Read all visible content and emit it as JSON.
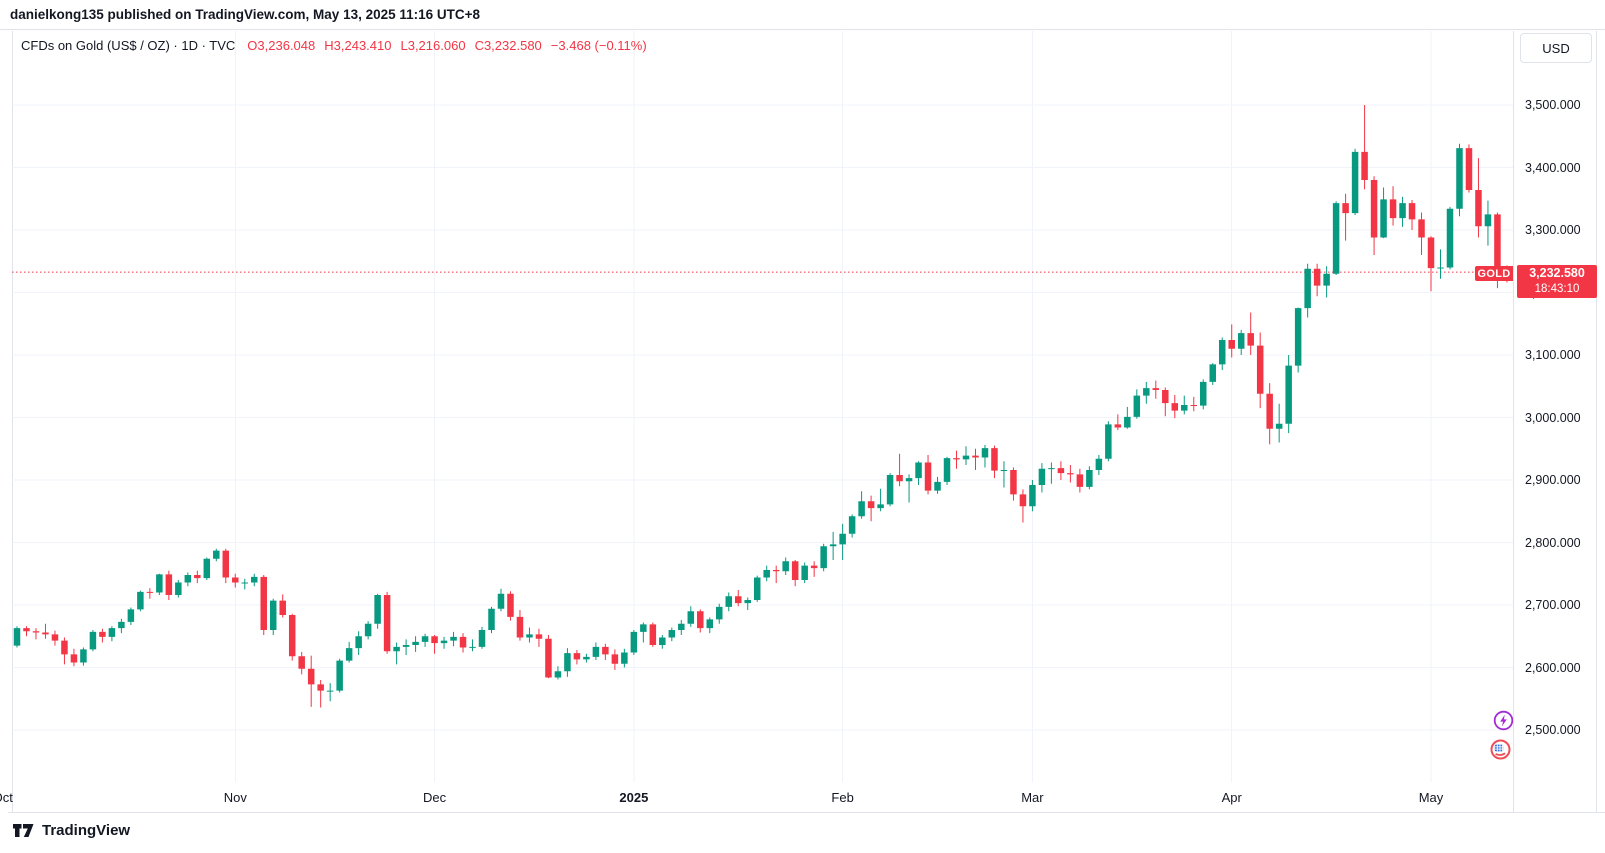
{
  "publish_bar": {
    "text": "danielkong135 published on TradingView.com, May 13, 2025 11:16 UTC+8"
  },
  "header": {
    "title": "CFDs on Gold (US$ / OZ) · 1D · TVC",
    "open": "O3,236.048",
    "high": "H3,243.410",
    "low": "L3,216.060",
    "close": "C3,232.580",
    "change": "−3.468 (−0.11%)"
  },
  "price_scale": {
    "currency_button": "USD",
    "symbol_label": "GOLD",
    "last_price": "3,232.580",
    "countdown": "18:43:10"
  },
  "footer": {
    "brand": "TradingView"
  },
  "icons": {
    "bottom_right": [
      "lightning-icon",
      "us-flag-icon"
    ]
  },
  "colors": {
    "up": "#089981",
    "down": "#f23645",
    "grid": "#f0f3fa",
    "border": "#e0e3eb",
    "text": "#131722",
    "accent_red": "#f23645"
  },
  "chart_data": {
    "type": "candlestick",
    "title": "CFDs on Gold (US$ / OZ) · 1D · TVC",
    "symbol": "GOLD",
    "exchange": "TVC",
    "timeframe": "1D",
    "currency": "USD",
    "current": {
      "open": 3236.048,
      "high": 3243.41,
      "low": 3216.06,
      "close": 3232.58,
      "change": -3.468,
      "change_pct": "−0.11%"
    },
    "last_price": 3232.58,
    "last_price_label": "3,232.580",
    "countdown": "18:43:10",
    "grid": true,
    "ylim": [
      2417,
      3618
    ],
    "y_ticks": [
      {
        "price": 3500,
        "label": "3,500.000"
      },
      {
        "price": 3400,
        "label": "3,400.000"
      },
      {
        "price": 3300,
        "label": "3,300.000"
      },
      {
        "price": 3200,
        "label": "3,200.000"
      },
      {
        "price": 3100,
        "label": "3,100.000"
      },
      {
        "price": 3000,
        "label": "3,000.000"
      },
      {
        "price": 2900,
        "label": "2,900.000"
      },
      {
        "price": 2800,
        "label": "2,800.000"
      },
      {
        "price": 2700,
        "label": "2,700.000"
      },
      {
        "price": 2600,
        "label": "2,600.000"
      },
      {
        "price": 2500,
        "label": "2,500.000"
      }
    ],
    "x_ticks": [
      {
        "label": "Oct",
        "index": -1.5,
        "grid": false
      },
      {
        "label": "Nov",
        "index": 23,
        "grid": true
      },
      {
        "label": "Dec",
        "index": 44,
        "grid": true
      },
      {
        "label": "2025",
        "index": 65,
        "grid": true,
        "bold": true
      },
      {
        "label": "Feb",
        "index": 87,
        "grid": true
      },
      {
        "label": "Mar",
        "index": 107,
        "grid": true
      },
      {
        "label": "Apr",
        "index": 128,
        "grid": true
      },
      {
        "label": "May",
        "index": 149,
        "grid": true
      }
    ],
    "candles": [
      [
        2635,
        2666,
        2632,
        2663
      ],
      [
        2663,
        2666,
        2650,
        2658
      ],
      [
        2658,
        2663,
        2645,
        2656
      ],
      [
        2656,
        2670,
        2646,
        2653
      ],
      [
        2653,
        2659,
        2635,
        2643
      ],
      [
        2643,
        2648,
        2605,
        2621
      ],
      [
        2621,
        2630,
        2602,
        2608
      ],
      [
        2608,
        2632,
        2603,
        2629
      ],
      [
        2629,
        2660,
        2626,
        2657
      ],
      [
        2657,
        2662,
        2640,
        2649
      ],
      [
        2649,
        2666,
        2642,
        2663
      ],
      [
        2663,
        2678,
        2655,
        2673
      ],
      [
        2673,
        2696,
        2668,
        2693
      ],
      [
        2693,
        2723,
        2690,
        2721
      ],
      [
        2721,
        2727,
        2710,
        2720
      ],
      [
        2720,
        2750,
        2716,
        2749
      ],
      [
        2749,
        2755,
        2708,
        2716
      ],
      [
        2716,
        2740,
        2712,
        2736
      ],
      [
        2736,
        2752,
        2730,
        2748
      ],
      [
        2748,
        2755,
        2735,
        2743
      ],
      [
        2743,
        2776,
        2740,
        2774
      ],
      [
        2774,
        2790,
        2770,
        2787
      ],
      [
        2787,
        2790,
        2735,
        2744
      ],
      [
        2744,
        2750,
        2728,
        2736
      ],
      [
        2736,
        2742,
        2725,
        2736
      ],
      [
        2736,
        2750,
        2730,
        2745
      ],
      [
        2745,
        2748,
        2652,
        2660
      ],
      [
        2660,
        2710,
        2652,
        2707
      ],
      [
        2707,
        2717,
        2680,
        2684
      ],
      [
        2684,
        2686,
        2611,
        2618
      ],
      [
        2618,
        2625,
        2589,
        2598
      ],
      [
        2598,
        2619,
        2537,
        2573
      ],
      [
        2573,
        2580,
        2536,
        2563
      ],
      [
        2563,
        2575,
        2546,
        2563
      ],
      [
        2563,
        2614,
        2560,
        2611
      ],
      [
        2611,
        2641,
        2608,
        2631
      ],
      [
        2631,
        2658,
        2620,
        2650
      ],
      [
        2650,
        2674,
        2645,
        2670
      ],
      [
        2670,
        2718,
        2662,
        2716
      ],
      [
        2716,
        2721,
        2622,
        2626
      ],
      [
        2626,
        2640,
        2605,
        2633
      ],
      [
        2633,
        2645,
        2620,
        2636
      ],
      [
        2636,
        2650,
        2625,
        2641
      ],
      [
        2641,
        2654,
        2633,
        2650
      ],
      [
        2650,
        2652,
        2622,
        2639
      ],
      [
        2639,
        2649,
        2630,
        2643
      ],
      [
        2643,
        2657,
        2634,
        2649
      ],
      [
        2649,
        2655,
        2624,
        2632
      ],
      [
        2632,
        2645,
        2626,
        2633
      ],
      [
        2633,
        2665,
        2630,
        2660
      ],
      [
        2660,
        2697,
        2655,
        2694
      ],
      [
        2694,
        2726,
        2690,
        2718
      ],
      [
        2718,
        2722,
        2675,
        2681
      ],
      [
        2681,
        2692,
        2643,
        2648
      ],
      [
        2648,
        2664,
        2640,
        2653
      ],
      [
        2653,
        2662,
        2633,
        2646
      ],
      [
        2646,
        2652,
        2583,
        2584
      ],
      [
        2584,
        2602,
        2581,
        2594
      ],
      [
        2594,
        2631,
        2585,
        2623
      ],
      [
        2623,
        2628,
        2605,
        2613
      ],
      [
        2613,
        2622,
        2608,
        2617
      ],
      [
        2617,
        2640,
        2612,
        2633
      ],
      [
        2633,
        2638,
        2612,
        2621
      ],
      [
        2621,
        2629,
        2596,
        2606
      ],
      [
        2606,
        2630,
        2600,
        2624
      ],
      [
        2624,
        2660,
        2620,
        2657
      ],
      [
        2657,
        2672,
        2640,
        2669
      ],
      [
        2669,
        2672,
        2633,
        2636
      ],
      [
        2636,
        2652,
        2630,
        2648
      ],
      [
        2648,
        2664,
        2642,
        2660
      ],
      [
        2660,
        2676,
        2652,
        2670
      ],
      [
        2670,
        2698,
        2665,
        2690
      ],
      [
        2690,
        2693,
        2656,
        2663
      ],
      [
        2663,
        2680,
        2655,
        2677
      ],
      [
        2677,
        2702,
        2670,
        2697
      ],
      [
        2697,
        2720,
        2690,
        2714
      ],
      [
        2714,
        2724,
        2698,
        2703
      ],
      [
        2703,
        2712,
        2692,
        2708
      ],
      [
        2708,
        2747,
        2705,
        2744
      ],
      [
        2744,
        2763,
        2738,
        2756
      ],
      [
        2756,
        2763,
        2735,
        2754
      ],
      [
        2754,
        2776,
        2748,
        2770
      ],
      [
        2770,
        2772,
        2730,
        2740
      ],
      [
        2740,
        2768,
        2735,
        2763
      ],
      [
        2763,
        2770,
        2745,
        2759
      ],
      [
        2759,
        2798,
        2754,
        2794
      ],
      [
        2794,
        2817,
        2772,
        2797
      ],
      [
        2797,
        2830,
        2772,
        2814
      ],
      [
        2814,
        2845,
        2808,
        2842
      ],
      [
        2842,
        2882,
        2838,
        2866
      ],
      [
        2866,
        2875,
        2834,
        2855
      ],
      [
        2855,
        2886,
        2850,
        2861
      ],
      [
        2861,
        2911,
        2858,
        2908
      ],
      [
        2908,
        2942,
        2890,
        2898
      ],
      [
        2898,
        2909,
        2864,
        2903
      ],
      [
        2903,
        2930,
        2892,
        2928
      ],
      [
        2928,
        2940,
        2877,
        2883
      ],
      [
        2883,
        2905,
        2878,
        2897
      ],
      [
        2897,
        2937,
        2892,
        2935
      ],
      [
        2935,
        2947,
        2918,
        2933
      ],
      [
        2933,
        2954,
        2924,
        2939
      ],
      [
        2939,
        2950,
        2916,
        2936
      ],
      [
        2936,
        2956,
        2920,
        2951
      ],
      [
        2951,
        2955,
        2903,
        2915
      ],
      [
        2915,
        2930,
        2888,
        2916
      ],
      [
        2916,
        2920,
        2867,
        2877
      ],
      [
        2877,
        2885,
        2832,
        2858
      ],
      [
        2858,
        2900,
        2850,
        2892
      ],
      [
        2892,
        2927,
        2880,
        2918
      ],
      [
        2918,
        2928,
        2894,
        2919
      ],
      [
        2919,
        2930,
        2900,
        2911
      ],
      [
        2911,
        2924,
        2896,
        2909
      ],
      [
        2909,
        2918,
        2880,
        2889
      ],
      [
        2889,
        2922,
        2885,
        2916
      ],
      [
        2916,
        2940,
        2908,
        2934
      ],
      [
        2934,
        2994,
        2930,
        2989
      ],
      [
        2989,
        3005,
        2980,
        2984
      ],
      [
        2984,
        3017,
        2982,
        3001
      ],
      [
        3001,
        3045,
        2998,
        3035
      ],
      [
        3035,
        3057,
        3022,
        3047
      ],
      [
        3047,
        3059,
        3030,
        3044
      ],
      [
        3044,
        3048,
        3002,
        3023
      ],
      [
        3023,
        3036,
        2999,
        3011
      ],
      [
        3011,
        3035,
        3005,
        3020
      ],
      [
        3020,
        3033,
        3010,
        3019
      ],
      [
        3019,
        3061,
        3013,
        3057
      ],
      [
        3057,
        3087,
        3052,
        3085
      ],
      [
        3085,
        3128,
        3076,
        3124
      ],
      [
        3124,
        3149,
        3096,
        3110
      ],
      [
        3110,
        3140,
        3100,
        3135
      ],
      [
        3135,
        3168,
        3100,
        3115
      ],
      [
        3115,
        3136,
        3015,
        3038
      ],
      [
        3038,
        3055,
        2957,
        2982
      ],
      [
        2982,
        3022,
        2960,
        2990
      ],
      [
        2990,
        3100,
        2975,
        3083
      ],
      [
        3083,
        3176,
        3072,
        3175
      ],
      [
        3175,
        3246,
        3160,
        3238
      ],
      [
        3238,
        3246,
        3194,
        3211
      ],
      [
        3211,
        3242,
        3192,
        3230
      ],
      [
        3230,
        3346,
        3228,
        3343
      ],
      [
        3343,
        3358,
        3283,
        3327
      ],
      [
        3327,
        3430,
        3324,
        3425
      ],
      [
        3425,
        3500,
        3365,
        3380
      ],
      [
        3380,
        3386,
        3260,
        3288
      ],
      [
        3288,
        3368,
        3287,
        3349
      ],
      [
        3349,
        3370,
        3307,
        3319
      ],
      [
        3319,
        3353,
        3305,
        3343
      ],
      [
        3343,
        3348,
        3300,
        3317
      ],
      [
        3317,
        3328,
        3260,
        3288
      ],
      [
        3288,
        3290,
        3202,
        3239
      ],
      [
        3239,
        3269,
        3222,
        3240
      ],
      [
        3240,
        3337,
        3237,
        3334
      ],
      [
        3334,
        3438,
        3322,
        3431
      ],
      [
        3431,
        3437,
        3360,
        3364
      ],
      [
        3364,
        3415,
        3288,
        3306
      ],
      [
        3306,
        3347,
        3275,
        3325
      ],
      [
        3325,
        3328,
        3207,
        3236
      ],
      [
        3236.05,
        3243.41,
        3216.06,
        3232.58
      ]
    ]
  }
}
